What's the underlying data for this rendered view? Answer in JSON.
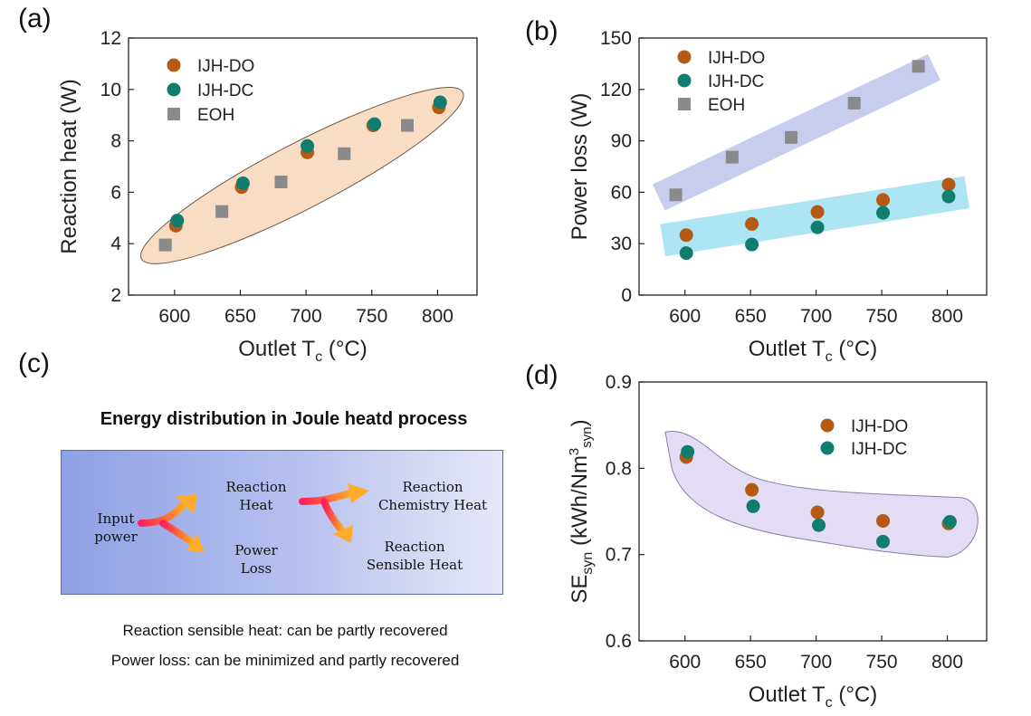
{
  "panel_letters": {
    "a": "(a)",
    "b": "(b)",
    "c": "(c)",
    "d": "(d)"
  },
  "colors": {
    "ijh_do": "#b45a12",
    "ijh_dc": "#117d6e",
    "eoh": "#8a8a8a",
    "band_a": "#f8dcc4",
    "band_b_top": "#bfc4ea",
    "band_b_bottom": "#9fe0f3",
    "band_d": "#e4dcf5"
  },
  "chart_data": [
    {
      "id": "a",
      "type": "scatter",
      "xlabel_main": "Outlet T",
      "xlabel_sub": "c",
      "xlabel_unit": " (°C)",
      "ylabel": "Reaction heat (W)",
      "xlim": [
        565,
        830
      ],
      "ylim": [
        2,
        12
      ],
      "xticks": [
        600,
        650,
        700,
        750,
        800
      ],
      "yticks": [
        2,
        4,
        6,
        8,
        10,
        12
      ],
      "legend": [
        "IJH-DO",
        "IJH-DC",
        "EOH"
      ],
      "series": [
        {
          "name": "IJH-DO",
          "x": [
            601,
            651,
            701,
            751,
            801
          ],
          "y": [
            4.7,
            6.2,
            7.55,
            8.6,
            9.3
          ]
        },
        {
          "name": "IJH-DC",
          "x": [
            602,
            652,
            701,
            752,
            802
          ],
          "y": [
            4.9,
            6.35,
            7.8,
            8.65,
            9.5
          ]
        },
        {
          "name": "EOH",
          "x": [
            593,
            636,
            681,
            729,
            777
          ],
          "y": [
            3.95,
            5.25,
            6.4,
            7.5,
            8.6
          ]
        }
      ]
    },
    {
      "id": "b",
      "type": "scatter",
      "xlabel_main": "Outlet T",
      "xlabel_sub": "c",
      "xlabel_unit": " (°C)",
      "ylabel": "Power loss (W)",
      "xlim": [
        565,
        830
      ],
      "ylim": [
        0,
        150
      ],
      "xticks": [
        600,
        650,
        700,
        750,
        800
      ],
      "yticks": [
        0,
        30,
        60,
        90,
        120,
        150
      ],
      "legend": [
        "IJH-DO",
        "IJH-DC",
        "EOH"
      ],
      "series": [
        {
          "name": "IJH-DO",
          "x": [
            601,
            651,
            701,
            751,
            801
          ],
          "y": [
            35,
            41.5,
            48.5,
            55.5,
            64.5
          ]
        },
        {
          "name": "IJH-DC",
          "x": [
            601,
            651,
            701,
            751,
            801
          ],
          "y": [
            24.5,
            29.5,
            39.5,
            48,
            57.5
          ]
        },
        {
          "name": "EOH",
          "x": [
            593,
            636,
            681,
            729,
            778
          ],
          "y": [
            58.5,
            80.5,
            92,
            112,
            133.5
          ]
        }
      ]
    },
    {
      "id": "d",
      "type": "scatter",
      "xlabel_main": "Outlet T",
      "xlabel_sub": "c",
      "xlabel_unit": " (°C)",
      "ylabel_main": "SE",
      "ylabel_sub": "syn",
      "ylabel_unit": " (kWh/Nm",
      "ylabel_sup": "3",
      "ylabel_sub2": "syn",
      "ylabel_end": ")",
      "xlim": [
        565,
        830
      ],
      "ylim": [
        0.6,
        0.9
      ],
      "xticks": [
        600,
        650,
        700,
        750,
        800
      ],
      "yticks": [
        0.6,
        0.7,
        0.8,
        0.9
      ],
      "legend": [
        "IJH-DO",
        "IJH-DC"
      ],
      "series": [
        {
          "name": "IJH-DO",
          "x": [
            601,
            651,
            701,
            751,
            801
          ],
          "y": [
            0.813,
            0.775,
            0.749,
            0.739,
            0.736
          ]
        },
        {
          "name": "IJH-DC",
          "x": [
            602,
            652,
            702,
            751,
            802
          ],
          "y": [
            0.819,
            0.756,
            0.734,
            0.715,
            0.738
          ]
        }
      ]
    }
  ],
  "diagram_c": {
    "title": "Energy distribution in Joule heatd process",
    "input": "Input\npower",
    "reaction_heat": "Reaction\nHeat",
    "power_loss": "Power\nLoss",
    "chem_heat": "Reaction\nChemistry Heat",
    "sensible_heat": "Reaction\nSensible Heat",
    "note1": "Reaction sensible heat: can be partly recovered",
    "note2": "Power loss: can be minimized and partly recovered"
  }
}
